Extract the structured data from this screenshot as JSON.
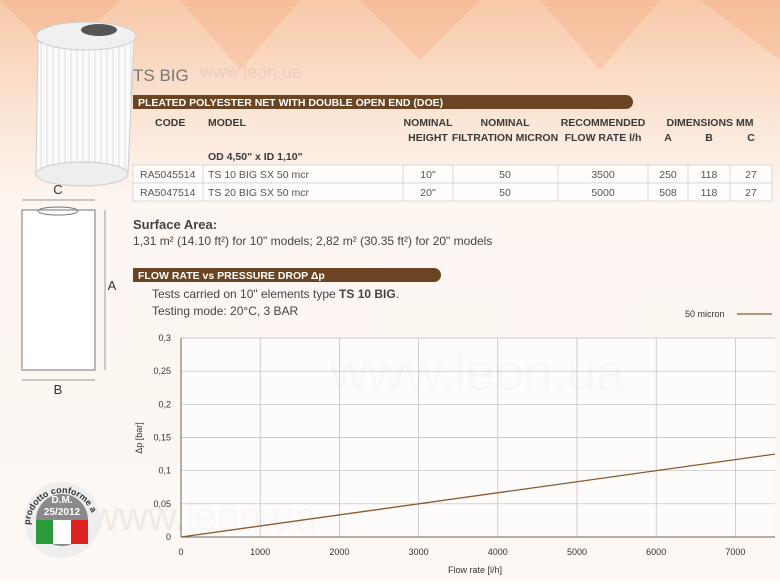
{
  "header": {
    "title": "TS BIG",
    "banner": "PLEATED POLYESTER NET WITH DOUBLE OPEN END (DOE)"
  },
  "table": {
    "headers": [
      [
        "CODE"
      ],
      [
        "MODEL"
      ],
      [
        "NOMINAL",
        "HEIGHT"
      ],
      [
        "NOMINAL",
        "FILTRATION MICRON"
      ],
      [
        "RECOMMENDED",
        "FLOW RATE l/h"
      ]
    ],
    "dimensions": {
      "label": "DIMENSIONS MM",
      "columns": [
        "A",
        "B",
        "C"
      ]
    },
    "group": "OD 4,50\" x ID 1,10\"",
    "rows": [
      [
        "RA5045514",
        "TS 10 BIG SX 50 mcr",
        "10\"",
        "50",
        "3500",
        "250",
        "118",
        "27"
      ],
      [
        "RA5047514",
        "TS 20 BIG SX 50 mcr",
        "20\"",
        "50",
        "5000",
        "508",
        "118",
        "27"
      ]
    ]
  },
  "surface": {
    "title": "Surface Area:",
    "text": "1,31 m² (14.10 ft²) for 10\" models; 2,82 m² (30.35 ft²) for 20\" models"
  },
  "flow": {
    "banner": "FLOW RATE vs PRESSURE DROP Δp",
    "note_prefix": "Tests carried on 10\" elements type ",
    "note_bold": "TS 10 BIG",
    "note_suffix": ".",
    "mode": "Testing mode: 20°C, 3 BAR"
  },
  "diagram": {
    "labels": [
      "C",
      "A",
      "B"
    ]
  },
  "badge": {
    "arc": "prodotto conforme a",
    "lines": [
      "D.M.",
      "25/2012"
    ]
  },
  "watermark": "www.leon.ua",
  "chart_data": {
    "type": "line",
    "x_label": "Flow rate [l/h]",
    "y_label": "Δp [bar]",
    "x": [
      0,
      7500
    ],
    "series": [
      {
        "name": "50 micron",
        "color": "#8b5a2b",
        "values": [
          0,
          0.125
        ]
      }
    ],
    "xlim": [
      0,
      7500
    ],
    "ylim": [
      0,
      0.3
    ],
    "xticks": [
      0,
      1000,
      2000,
      3000,
      4000,
      5000,
      6000,
      7000
    ],
    "yticks": [
      0,
      {
        "value": 0.05,
        "label": "0,05"
      },
      {
        "value": 0.1,
        "label": "0,1"
      },
      {
        "value": 0.15,
        "label": "0,15"
      },
      {
        "value": 0.2,
        "label": "0,2"
      },
      {
        "value": 0.25,
        "label": "0,25"
      },
      {
        "value": 0.3,
        "label": "0,3"
      }
    ],
    "grid": true
  }
}
